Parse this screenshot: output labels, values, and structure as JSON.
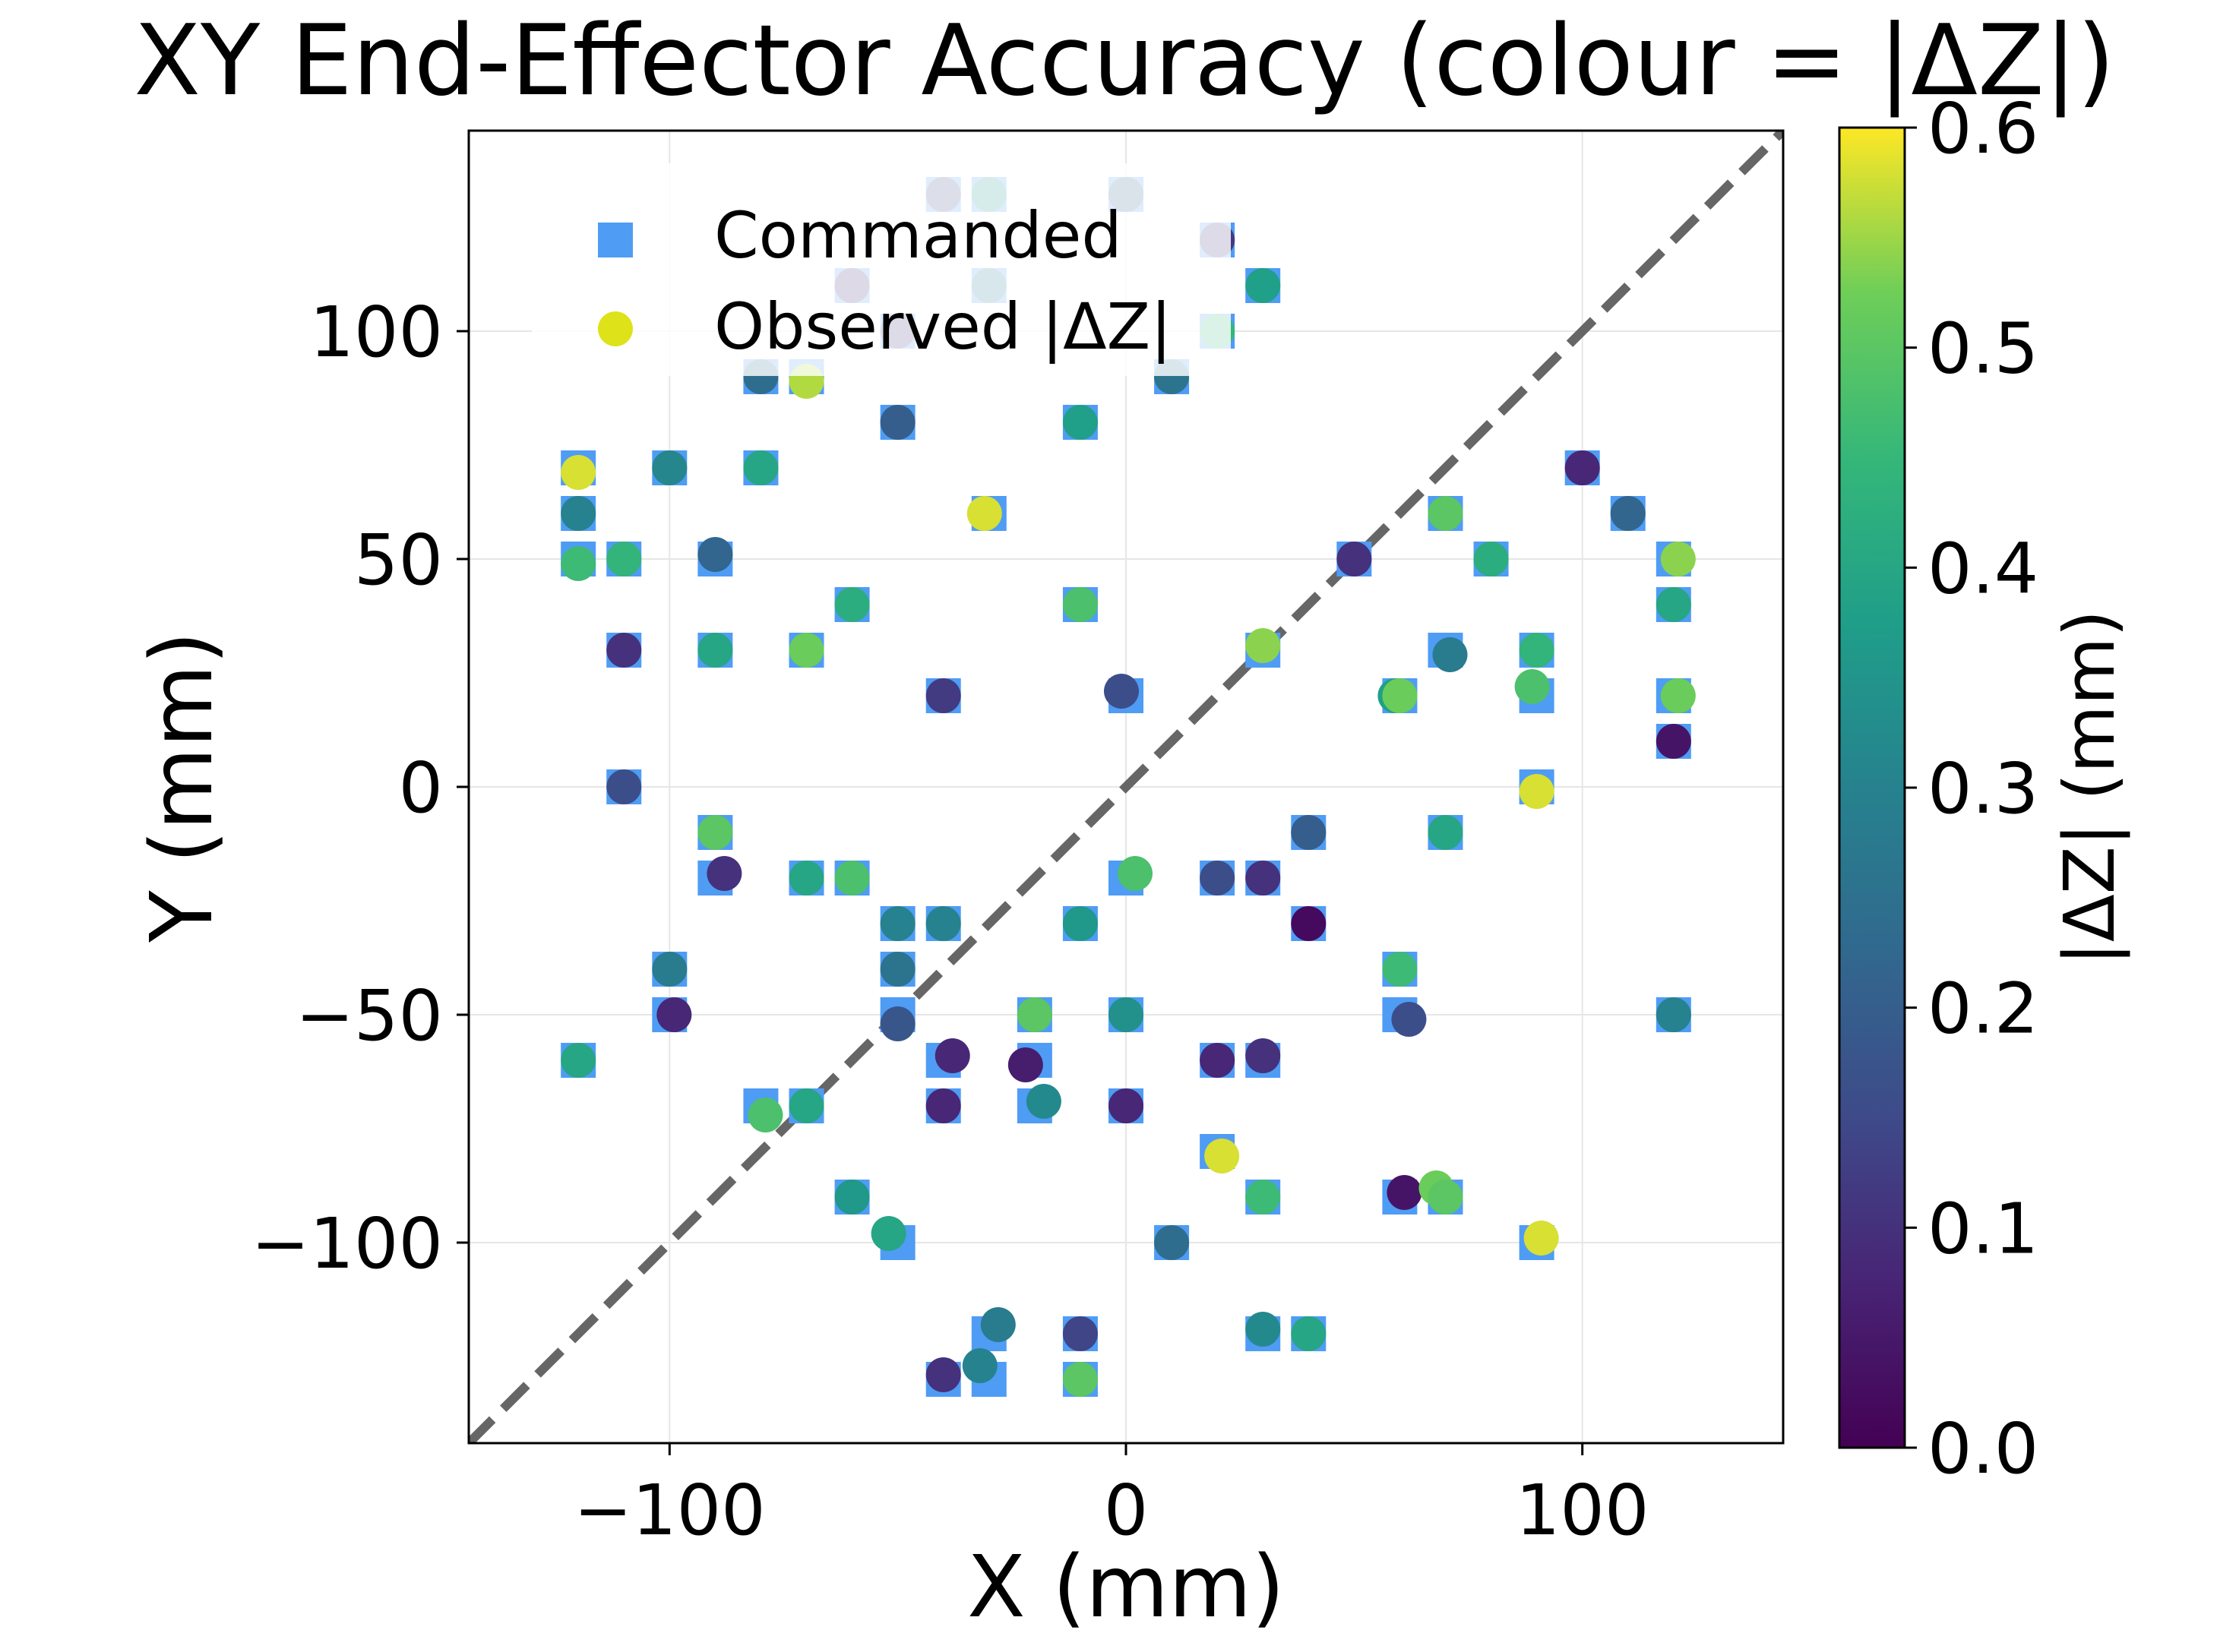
{
  "chart_data": {
    "type": "scatter",
    "title": "XY End-Effector Accuracy (colour = |ΔZ|)",
    "xlabel": "X (mm)",
    "ylabel": "Y (mm)",
    "xlim": [
      -144,
      144
    ],
    "ylim": [
      -144,
      144
    ],
    "xticks": [
      -100,
      0,
      100
    ],
    "yticks": [
      -100,
      -50,
      0,
      50,
      100
    ],
    "grid": true,
    "legend_position": "upper-left",
    "reference_line": {
      "style": "dashed",
      "color": "#666666",
      "from": [
        -144,
        -144
      ],
      "to": [
        144,
        144
      ]
    },
    "colorbar": {
      "label": "|ΔZ| (mm)",
      "colormap": "viridis",
      "min": 0.0,
      "max": 0.6,
      "ticks": [
        0.0,
        0.1,
        0.2,
        0.3,
        0.4,
        0.5,
        0.6
      ]
    },
    "series": [
      {
        "name": "Commanded",
        "marker": "square",
        "color": "#4f9cf5",
        "points": [
          [
            -40,
            130
          ],
          [
            -30,
            130
          ],
          [
            0,
            130
          ],
          [
            20,
            120
          ],
          [
            -60,
            110
          ],
          [
            -30,
            110
          ],
          [
            30,
            110
          ],
          [
            -50,
            100
          ],
          [
            20,
            100
          ],
          [
            -80,
            90
          ],
          [
            -70,
            90
          ],
          [
            10,
            90
          ],
          [
            -50,
            80
          ],
          [
            -10,
            80
          ],
          [
            -120,
            70
          ],
          [
            -100,
            70
          ],
          [
            -80,
            70
          ],
          [
            100,
            70
          ],
          [
            -120,
            60
          ],
          [
            -30,
            60
          ],
          [
            110,
            60
          ],
          [
            70,
            60
          ],
          [
            -120,
            50
          ],
          [
            -110,
            50
          ],
          [
            -90,
            50
          ],
          [
            50,
            50
          ],
          [
            80,
            50
          ],
          [
            120,
            50
          ],
          [
            -60,
            40
          ],
          [
            -10,
            40
          ],
          [
            120,
            40
          ],
          [
            -110,
            30
          ],
          [
            -90,
            30
          ],
          [
            -70,
            30
          ],
          [
            30,
            30
          ],
          [
            70,
            30
          ],
          [
            90,
            30
          ],
          [
            -40,
            20
          ],
          [
            0,
            20
          ],
          [
            60,
            20
          ],
          [
            90,
            20
          ],
          [
            120,
            20
          ],
          [
            120,
            10
          ],
          [
            -110,
            0
          ],
          [
            90,
            0
          ],
          [
            -90,
            -10
          ],
          [
            40,
            -10
          ],
          [
            70,
            -10
          ],
          [
            -90,
            -20
          ],
          [
            -70,
            -20
          ],
          [
            -60,
            -20
          ],
          [
            0,
            -20
          ],
          [
            20,
            -20
          ],
          [
            30,
            -20
          ],
          [
            -50,
            -30
          ],
          [
            -40,
            -30
          ],
          [
            -10,
            -30
          ],
          [
            40,
            -30
          ],
          [
            -100,
            -40
          ],
          [
            -50,
            -40
          ],
          [
            60,
            -40
          ],
          [
            -100,
            -50
          ],
          [
            -50,
            -50
          ],
          [
            -20,
            -50
          ],
          [
            0,
            -50
          ],
          [
            60,
            -50
          ],
          [
            120,
            -50
          ],
          [
            -120,
            -60
          ],
          [
            -40,
            -60
          ],
          [
            -20,
            -60
          ],
          [
            20,
            -60
          ],
          [
            30,
            -60
          ],
          [
            -80,
            -70
          ],
          [
            -70,
            -70
          ],
          [
            -40,
            -70
          ],
          [
            -20,
            -70
          ],
          [
            0,
            -70
          ],
          [
            20,
            -80
          ],
          [
            -60,
            -90
          ],
          [
            30,
            -90
          ],
          [
            60,
            -90
          ],
          [
            70,
            -90
          ],
          [
            -50,
            -100
          ],
          [
            10,
            -100
          ],
          [
            90,
            -100
          ],
          [
            -30,
            -120
          ],
          [
            -10,
            -120
          ],
          [
            30,
            -120
          ],
          [
            40,
            -120
          ],
          [
            -40,
            -130
          ],
          [
            -30,
            -130
          ],
          [
            -10,
            -130
          ]
        ]
      },
      {
        "name": "Observed |ΔZ|",
        "marker": "circle",
        "points": [
          {
            "x": -40,
            "y": 130,
            "z": 0.16
          },
          {
            "x": -30,
            "y": 130,
            "z": 0.36
          },
          {
            "x": 0,
            "y": 130,
            "z": 0.2
          },
          {
            "x": 20,
            "y": 120,
            "z": 0.12
          },
          {
            "x": -60,
            "y": 110,
            "z": 0.1
          },
          {
            "x": -30,
            "y": 110,
            "z": 0.28
          },
          {
            "x": 30,
            "y": 110,
            "z": 0.38
          },
          {
            "x": -50,
            "y": 100,
            "z": 0.12
          },
          {
            "x": 20,
            "y": 100,
            "z": 0.45
          },
          {
            "x": -80,
            "y": 90,
            "z": 0.24
          },
          {
            "x": -70,
            "y": 89,
            "z": 0.56
          },
          {
            "x": 10,
            "y": 90,
            "z": 0.26
          },
          {
            "x": -50,
            "y": 80,
            "z": 0.2
          },
          {
            "x": -10,
            "y": 80,
            "z": 0.38
          },
          {
            "x": -120,
            "y": 69,
            "z": 0.58
          },
          {
            "x": -100,
            "y": 70,
            "z": 0.31
          },
          {
            "x": -80,
            "y": 70,
            "z": 0.4
          },
          {
            "x": 100,
            "y": 70,
            "z": 0.08
          },
          {
            "x": -120,
            "y": 60,
            "z": 0.3
          },
          {
            "x": -31,
            "y": 60,
            "z": 0.58
          },
          {
            "x": 110,
            "y": 60,
            "z": 0.22
          },
          {
            "x": 70,
            "y": 60,
            "z": 0.5
          },
          {
            "x": -120,
            "y": 49,
            "z": 0.46
          },
          {
            "x": -110,
            "y": 50,
            "z": 0.44
          },
          {
            "x": -90,
            "y": 51,
            "z": 0.22
          },
          {
            "x": 50,
            "y": 50,
            "z": 0.1
          },
          {
            "x": 80,
            "y": 50,
            "z": 0.42
          },
          {
            "x": 121,
            "y": 50,
            "z": 0.54
          },
          {
            "x": -60,
            "y": 40,
            "z": 0.42
          },
          {
            "x": -10,
            "y": 40,
            "z": 0.48
          },
          {
            "x": 120,
            "y": 40,
            "z": 0.4
          },
          {
            "x": -110,
            "y": 30,
            "z": 0.1
          },
          {
            "x": -90,
            "y": 30,
            "z": 0.4
          },
          {
            "x": -70,
            "y": 30,
            "z": 0.52
          },
          {
            "x": 30,
            "y": 31,
            "z": 0.54
          },
          {
            "x": 71,
            "y": 29,
            "z": 0.28
          },
          {
            "x": 90,
            "y": 30,
            "z": 0.44
          },
          {
            "x": -40,
            "y": 20,
            "z": 0.12
          },
          {
            "x": -1,
            "y": 21,
            "z": 0.16
          },
          {
            "x": 59,
            "y": 20,
            "z": 0.38
          },
          {
            "x": 60,
            "y": 20,
            "z": 0.52
          },
          {
            "x": 89,
            "y": 22,
            "z": 0.48
          },
          {
            "x": 121,
            "y": 20,
            "z": 0.52
          },
          {
            "x": 120,
            "y": 10,
            "z": 0.04
          },
          {
            "x": -110,
            "y": 0,
            "z": 0.16
          },
          {
            "x": 90,
            "y": -1,
            "z": 0.58
          },
          {
            "x": -90,
            "y": -10,
            "z": 0.5
          },
          {
            "x": 40,
            "y": -10,
            "z": 0.2
          },
          {
            "x": 70,
            "y": -10,
            "z": 0.4
          },
          {
            "x": -88,
            "y": -19,
            "z": 0.1
          },
          {
            "x": -70,
            "y": -20,
            "z": 0.4
          },
          {
            "x": -60,
            "y": -20,
            "z": 0.48
          },
          {
            "x": 2,
            "y": -19,
            "z": 0.48
          },
          {
            "x": 20,
            "y": -20,
            "z": 0.16
          },
          {
            "x": 30,
            "y": -20,
            "z": 0.1
          },
          {
            "x": -50,
            "y": -30,
            "z": 0.3
          },
          {
            "x": -40,
            "y": -30,
            "z": 0.3
          },
          {
            "x": -10,
            "y": -30,
            "z": 0.36
          },
          {
            "x": 40,
            "y": -30,
            "z": 0.02
          },
          {
            "x": -100,
            "y": -40,
            "z": 0.28
          },
          {
            "x": -50,
            "y": -40,
            "z": 0.26
          },
          {
            "x": 60,
            "y": -40,
            "z": 0.46
          },
          {
            "x": -99,
            "y": -50,
            "z": 0.08
          },
          {
            "x": -50,
            "y": -52,
            "z": 0.18
          },
          {
            "x": -20,
            "y": -50,
            "z": 0.5
          },
          {
            "x": 0,
            "y": -50,
            "z": 0.34
          },
          {
            "x": 62,
            "y": -51,
            "z": 0.16
          },
          {
            "x": 120,
            "y": -50,
            "z": 0.3
          },
          {
            "x": -120,
            "y": -60,
            "z": 0.4
          },
          {
            "x": -38,
            "y": -59,
            "z": 0.08
          },
          {
            "x": -22,
            "y": -61,
            "z": 0.06
          },
          {
            "x": 20,
            "y": -60,
            "z": 0.08
          },
          {
            "x": 30,
            "y": -59,
            "z": 0.1
          },
          {
            "x": -79,
            "y": -72,
            "z": 0.48
          },
          {
            "x": -70,
            "y": -70,
            "z": 0.4
          },
          {
            "x": -40,
            "y": -70,
            "z": 0.08
          },
          {
            "x": -18,
            "y": -69,
            "z": 0.32
          },
          {
            "x": 0,
            "y": -70,
            "z": 0.08
          },
          {
            "x": 21,
            "y": -81,
            "z": 0.58
          },
          {
            "x": -60,
            "y": -90,
            "z": 0.36
          },
          {
            "x": 30,
            "y": -90,
            "z": 0.46
          },
          {
            "x": 61,
            "y": -89,
            "z": 0.04
          },
          {
            "x": 68,
            "y": -88,
            "z": 0.52
          },
          {
            "x": 70,
            "y": -90,
            "z": 0.5
          },
          {
            "x": -52,
            "y": -98,
            "z": 0.4
          },
          {
            "x": 10,
            "y": -100,
            "z": 0.24
          },
          {
            "x": 91,
            "y": -99,
            "z": 0.58
          },
          {
            "x": -28,
            "y": -118,
            "z": 0.28
          },
          {
            "x": -10,
            "y": -120,
            "z": 0.14
          },
          {
            "x": 30,
            "y": -119,
            "z": 0.32
          },
          {
            "x": 40,
            "y": -120,
            "z": 0.4
          },
          {
            "x": -40,
            "y": -129,
            "z": 0.1
          },
          {
            "x": -32,
            "y": -127,
            "z": 0.3
          },
          {
            "x": -10,
            "y": -130,
            "z": 0.5
          }
        ]
      }
    ]
  }
}
